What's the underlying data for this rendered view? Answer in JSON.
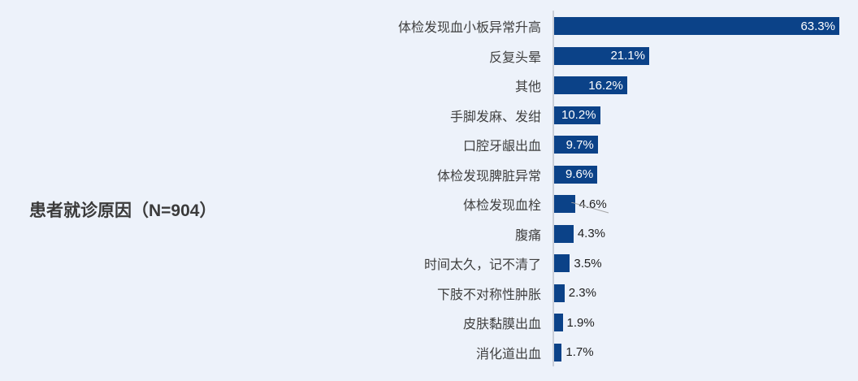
{
  "page": {
    "background_color": "#EDF2FA"
  },
  "title": {
    "text": "患者就诊原因（N=904）"
  },
  "chart_data": {
    "type": "bar",
    "orientation": "horizontal",
    "title": "患者就诊原因（N=904）",
    "categories": [
      "体检发现血小板异常升高",
      "反复头晕",
      "其他",
      "手脚发麻、发绀",
      "口腔牙龈出血",
      "体检发现脾脏异常",
      "体检发现血栓",
      "腹痛",
      "时间太久，记不清了",
      "下肢不对称性肿胀",
      "皮肤黏膜出血",
      "消化道出血"
    ],
    "values": [
      63.3,
      21.1,
      16.2,
      10.2,
      9.7,
      9.6,
      4.6,
      4.3,
      3.5,
      2.3,
      1.9,
      1.7
    ],
    "value_labels": [
      "63.3%",
      "21.1%",
      "16.2%",
      "10.2%",
      "9.7%",
      "9.6%",
      "4.6%",
      "4.3%",
      "3.5%",
      "2.3%",
      "1.9%",
      "1.7%"
    ],
    "unit": "%",
    "xlim": [
      0,
      67
    ],
    "grid": false,
    "legend": "none",
    "bar_color": "#0B4288",
    "inside_label_color": "#FFFFFF",
    "outside_label_color": "#1F1F1F",
    "axis_line_color": "#C9CED8",
    "leader_line_color": "#A6A6A6",
    "inside_label_min_value": 9.0,
    "leader_line_category": "体检发现血栓"
  }
}
